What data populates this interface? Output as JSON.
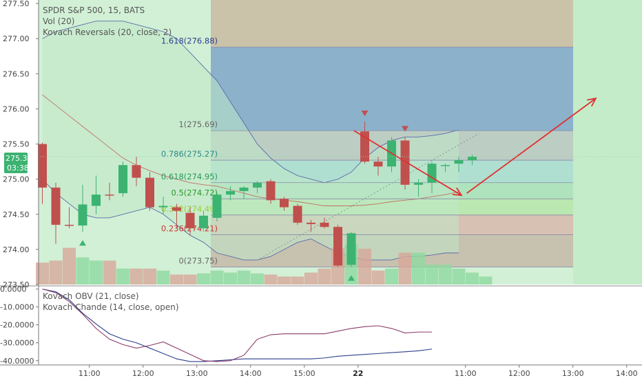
{
  "header": {
    "symbol_line": "SPDR S&P 500, 15, BATS",
    "vol_line": "Vol (20)",
    "reversal_line": "Kovach Reversals (20, close, 2)"
  },
  "price_badge": {
    "price": "275.32",
    "countdown": "03:38",
    "color": "#3cb371"
  },
  "lower_pane": {
    "obv_label": "Kovach OBV (21, close)",
    "chande_label": "Kovach Chande (14, close, open)"
  },
  "colors": {
    "up": "#3cb371",
    "down": "#c0504d",
    "band_fill": "#bfe8c8",
    "bg": "#d2f0d6",
    "fib_stroke": "#8a8aa8",
    "arrow": "#e03030",
    "obv_line": "#2b3f8a",
    "chande_line": "#8b3a6a"
  },
  "chart_data": [
    {
      "type": "candlestick",
      "title": "SPDR S&P 500, 15, BATS",
      "ylim": [
        273.5,
        277.55
      ],
      "x_ticks": [
        {
          "label": "11:00",
          "index": 3.5
        },
        {
          "label": "12:00",
          "index": 7.5
        },
        {
          "label": "13:00",
          "index": 11.5
        },
        {
          "label": "14:00",
          "index": 15.5
        },
        {
          "label": "15:00",
          "index": 19.5
        },
        {
          "label": "22",
          "index": 23.5
        },
        {
          "label": "11:00",
          "index": 31.5
        },
        {
          "label": "12:00",
          "index": 35.5
        },
        {
          "label": "13:00",
          "index": 39.5
        },
        {
          "label": "14:00",
          "index": 43.5
        }
      ],
      "y_ticks": [
        "273.50",
        "274.00",
        "274.50",
        "275.00",
        "275.50",
        "276.00",
        "276.50",
        "277.00",
        "277.50"
      ],
      "candles": [
        {
          "o": 275.5,
          "h": 275.52,
          "l": 274.65,
          "c": 274.88
        },
        {
          "o": 274.88,
          "h": 274.95,
          "l": 274.08,
          "c": 274.35
        },
        {
          "o": 274.35,
          "h": 274.6,
          "l": 274.3,
          "c": 274.34
        },
        {
          "o": 274.34,
          "h": 274.92,
          "l": 274.25,
          "c": 274.64
        },
        {
          "o": 274.62,
          "h": 275.05,
          "l": 274.5,
          "c": 274.78
        },
        {
          "o": 274.78,
          "h": 274.95,
          "l": 274.7,
          "c": 274.77
        },
        {
          "o": 274.8,
          "h": 275.25,
          "l": 274.75,
          "c": 275.2
        },
        {
          "o": 275.2,
          "h": 275.32,
          "l": 274.9,
          "c": 275.02
        },
        {
          "o": 275.02,
          "h": 275.1,
          "l": 274.55,
          "c": 274.6
        },
        {
          "o": 274.6,
          "h": 274.75,
          "l": 274.5,
          "c": 274.62
        },
        {
          "o": 274.6,
          "h": 274.65,
          "l": 274.3,
          "c": 274.55
        },
        {
          "o": 274.52,
          "h": 274.6,
          "l": 274.2,
          "c": 274.3
        },
        {
          "o": 274.3,
          "h": 274.55,
          "l": 274.28,
          "c": 274.48
        },
        {
          "o": 274.45,
          "h": 274.8,
          "l": 274.4,
          "c": 274.78
        },
        {
          "o": 274.78,
          "h": 274.9,
          "l": 274.7,
          "c": 274.83
        },
        {
          "o": 274.83,
          "h": 274.9,
          "l": 274.72,
          "c": 274.88
        },
        {
          "o": 274.88,
          "h": 274.97,
          "l": 274.8,
          "c": 274.95
        },
        {
          "o": 274.97,
          "h": 275.0,
          "l": 274.65,
          "c": 274.7
        },
        {
          "o": 274.72,
          "h": 274.75,
          "l": 274.55,
          "c": 274.6
        },
        {
          "o": 274.62,
          "h": 274.65,
          "l": 274.35,
          "c": 274.38
        },
        {
          "o": 274.38,
          "h": 274.42,
          "l": 274.25,
          "c": 274.36
        },
        {
          "o": 274.38,
          "h": 274.45,
          "l": 274.3,
          "c": 274.32
        },
        {
          "o": 274.32,
          "h": 274.35,
          "l": 273.75,
          "c": 273.77
        },
        {
          "o": 273.78,
          "h": 274.25,
          "l": 273.75,
          "c": 274.23
        },
        {
          "o": 275.68,
          "h": 275.82,
          "l": 275.22,
          "c": 275.25
        },
        {
          "o": 275.25,
          "h": 275.32,
          "l": 275.05,
          "c": 275.18
        },
        {
          "o": 275.18,
          "h": 275.6,
          "l": 275.1,
          "c": 275.55
        },
        {
          "o": 275.55,
          "h": 275.6,
          "l": 274.85,
          "c": 274.92
        },
        {
          "o": 274.92,
          "h": 275.0,
          "l": 274.75,
          "c": 274.95
        },
        {
          "o": 274.95,
          "h": 275.25,
          "l": 274.8,
          "c": 275.22
        },
        {
          "o": 275.2,
          "h": 275.22,
          "l": 275.1,
          "c": 275.2
        },
        {
          "o": 275.22,
          "h": 275.32,
          "l": 275.1,
          "c": 275.27
        },
        {
          "o": 275.27,
          "h": 275.35,
          "l": 275.2,
          "c": 275.32
        }
      ],
      "volume": [
        0.55,
        0.6,
        0.92,
        0.68,
        0.6,
        0.6,
        0.4,
        0.4,
        0.4,
        0.35,
        0.25,
        0.25,
        0.28,
        0.35,
        0.3,
        0.35,
        0.28,
        0.25,
        0.2,
        0.2,
        0.3,
        0.4,
        0.92,
        1.0,
        0.9,
        0.35,
        0.4,
        0.8,
        0.8,
        0.5,
        0.5,
        0.4,
        0.3,
        0.2
      ],
      "band_upper": [
        277.0,
        277.1,
        277.15,
        277.2,
        277.25,
        277.25,
        277.25,
        277.2,
        277.15,
        277.1,
        277.0,
        276.8,
        276.6,
        276.4,
        276.1,
        275.8,
        275.5,
        275.3,
        275.15,
        275.05,
        275.0,
        274.95,
        275.0,
        275.1,
        275.3,
        275.45,
        275.55,
        275.6,
        275.6,
        275.62,
        275.65,
        275.7
      ],
      "band_lower": [
        275.0,
        274.8,
        274.65,
        274.5,
        274.45,
        274.45,
        274.5,
        274.55,
        274.6,
        274.5,
        274.35,
        274.2,
        274.1,
        273.95,
        273.9,
        273.85,
        273.85,
        273.9,
        274.0,
        274.1,
        274.15,
        274.05,
        273.95,
        273.9,
        273.85,
        273.85,
        273.85,
        273.9,
        273.9,
        273.92,
        273.95,
        273.95
      ],
      "ma_line": [
        276.2,
        276.05,
        275.9,
        275.75,
        275.6,
        275.45,
        275.3,
        275.2,
        275.12,
        275.05,
        275.0,
        274.95,
        274.92,
        274.9,
        274.85,
        274.8,
        274.75,
        274.72,
        274.7,
        274.68,
        274.65,
        274.62,
        274.62,
        274.62,
        274.63,
        274.65,
        274.68,
        274.7,
        274.72,
        274.75,
        274.78,
        274.82
      ],
      "fib_levels": [
        {
          "label": "1.618(276.88)",
          "value": 276.88,
          "color": "#2b3f8a",
          "fill": "#7fa6c9"
        },
        {
          "label": "1(275.69)",
          "value": 275.69,
          "color": "#666666",
          "fill": "#b8c7c0"
        },
        {
          "label": "0.786(275.27)",
          "value": 275.27,
          "color": "#2a8a8a",
          "fill": "#a9dccf"
        },
        {
          "label": "0.618(274.95)",
          "value": 274.95,
          "color": "#2a9a5a",
          "fill": "#a9e0b9"
        },
        {
          "label": "0.5(274.72)",
          "value": 274.72,
          "color": "#2a9a2a",
          "fill": "#b7e6a9"
        },
        {
          "label": "0.382(274.49)",
          "value": 274.49,
          "color": "#9acd32",
          "fill": "#d8b8ab"
        },
        {
          "label": "0.236(274.21)",
          "value": 274.21,
          "color": "#cc3333",
          "fill": "#c6b9a9"
        },
        {
          "label": "0(273.75)",
          "value": 273.75,
          "color": "#666666",
          "fill": null
        }
      ],
      "fib_range": {
        "start_index": 13,
        "end_index": 39
      },
      "top_fill": "#c9bfa7",
      "reversal_markers": [
        {
          "index": 3,
          "direction": "up"
        },
        {
          "index": 23,
          "direction": "up"
        },
        {
          "index": 24,
          "direction": "down"
        },
        {
          "index": 27,
          "direction": "down"
        }
      ],
      "annotations": [
        {
          "from": [
            23.2,
            275.69
          ],
          "to": [
            31.2,
            274.77
          ]
        },
        {
          "from": [
            31.6,
            274.8
          ],
          "to": [
            41.2,
            276.15
          ]
        }
      ],
      "trend_dotted": {
        "from": [
          16,
          273.85
        ],
        "to": [
          32.5,
          275.65
        ]
      }
    },
    {
      "type": "line",
      "ylim": [
        -42000,
        1000
      ],
      "y_ticks": [
        "0.0000",
        "-10.0000",
        "-20.0000",
        "-30.0000",
        "-40.0000"
      ],
      "series": [
        {
          "name": "Kovach OBV (21, close)",
          "values": [
            0,
            -1500,
            -6000,
            -13500,
            -19500,
            -25000,
            -28000,
            -30000,
            -33000,
            -36000,
            -39000,
            -40500,
            -40500,
            -40000,
            -39500,
            -39000,
            -39000,
            -39000,
            -39000,
            -39000,
            -39000,
            -38500,
            -37500,
            -37000,
            -36500,
            -36000,
            -35500,
            -35000,
            -34500,
            -33500
          ]
        },
        {
          "name": "Kovach Chande (14, close, open)",
          "values": [
            0,
            -2000,
            -7000,
            -14000,
            -22000,
            -28000,
            -31000,
            -33000,
            -31500,
            -29500,
            -33000,
            -36500,
            -40000,
            -40500,
            -40000,
            -37000,
            -28000,
            -25500,
            -25000,
            -25000,
            -25000,
            -25000,
            -23500,
            -22000,
            -21000,
            -20500,
            -22000,
            -24500,
            -24000,
            -24000
          ]
        }
      ]
    }
  ]
}
